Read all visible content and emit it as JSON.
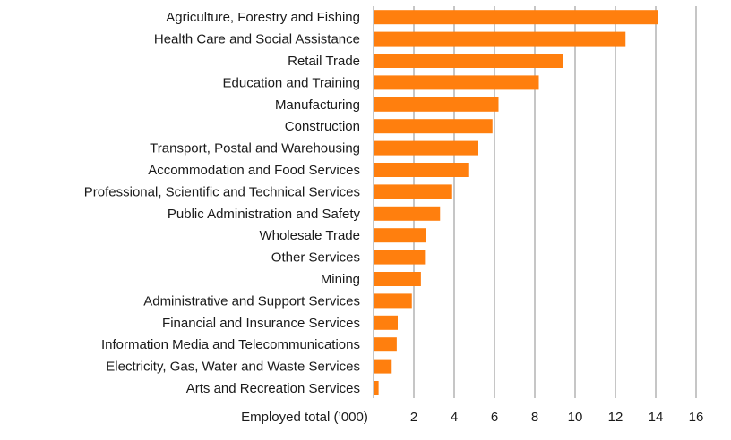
{
  "chart_data": {
    "type": "bar",
    "orientation": "horizontal",
    "categories": [
      "Agriculture, Forestry and Fishing",
      "Health Care and Social Assistance",
      "Retail Trade",
      "Education and Training",
      "Manufacturing",
      "Construction",
      "Transport, Postal and Warehousing",
      "Accommodation and Food Services",
      "Professional, Scientific and Technical Services",
      "Public Administration and Safety",
      "Wholesale Trade",
      "Other Services",
      "Mining",
      "Administrative and Support Services",
      "Financial and Insurance Services",
      "Information Media and Telecommunications",
      "Electricity, Gas, Water and Waste Services",
      "Arts and Recreation Services"
    ],
    "values": [
      14.1,
      12.5,
      9.4,
      8.2,
      6.2,
      5.9,
      5.2,
      4.7,
      3.9,
      3.3,
      2.6,
      2.55,
      2.35,
      1.9,
      1.2,
      1.15,
      0.9,
      0.25
    ],
    "xlabel": "Employed total (’000)",
    "ylabel": "",
    "xlim": [
      0,
      16
    ],
    "xticks": [
      2,
      4,
      6,
      8,
      10,
      12,
      14,
      16
    ],
    "grid": "vertical",
    "bar_color": "#FF7F0E"
  }
}
